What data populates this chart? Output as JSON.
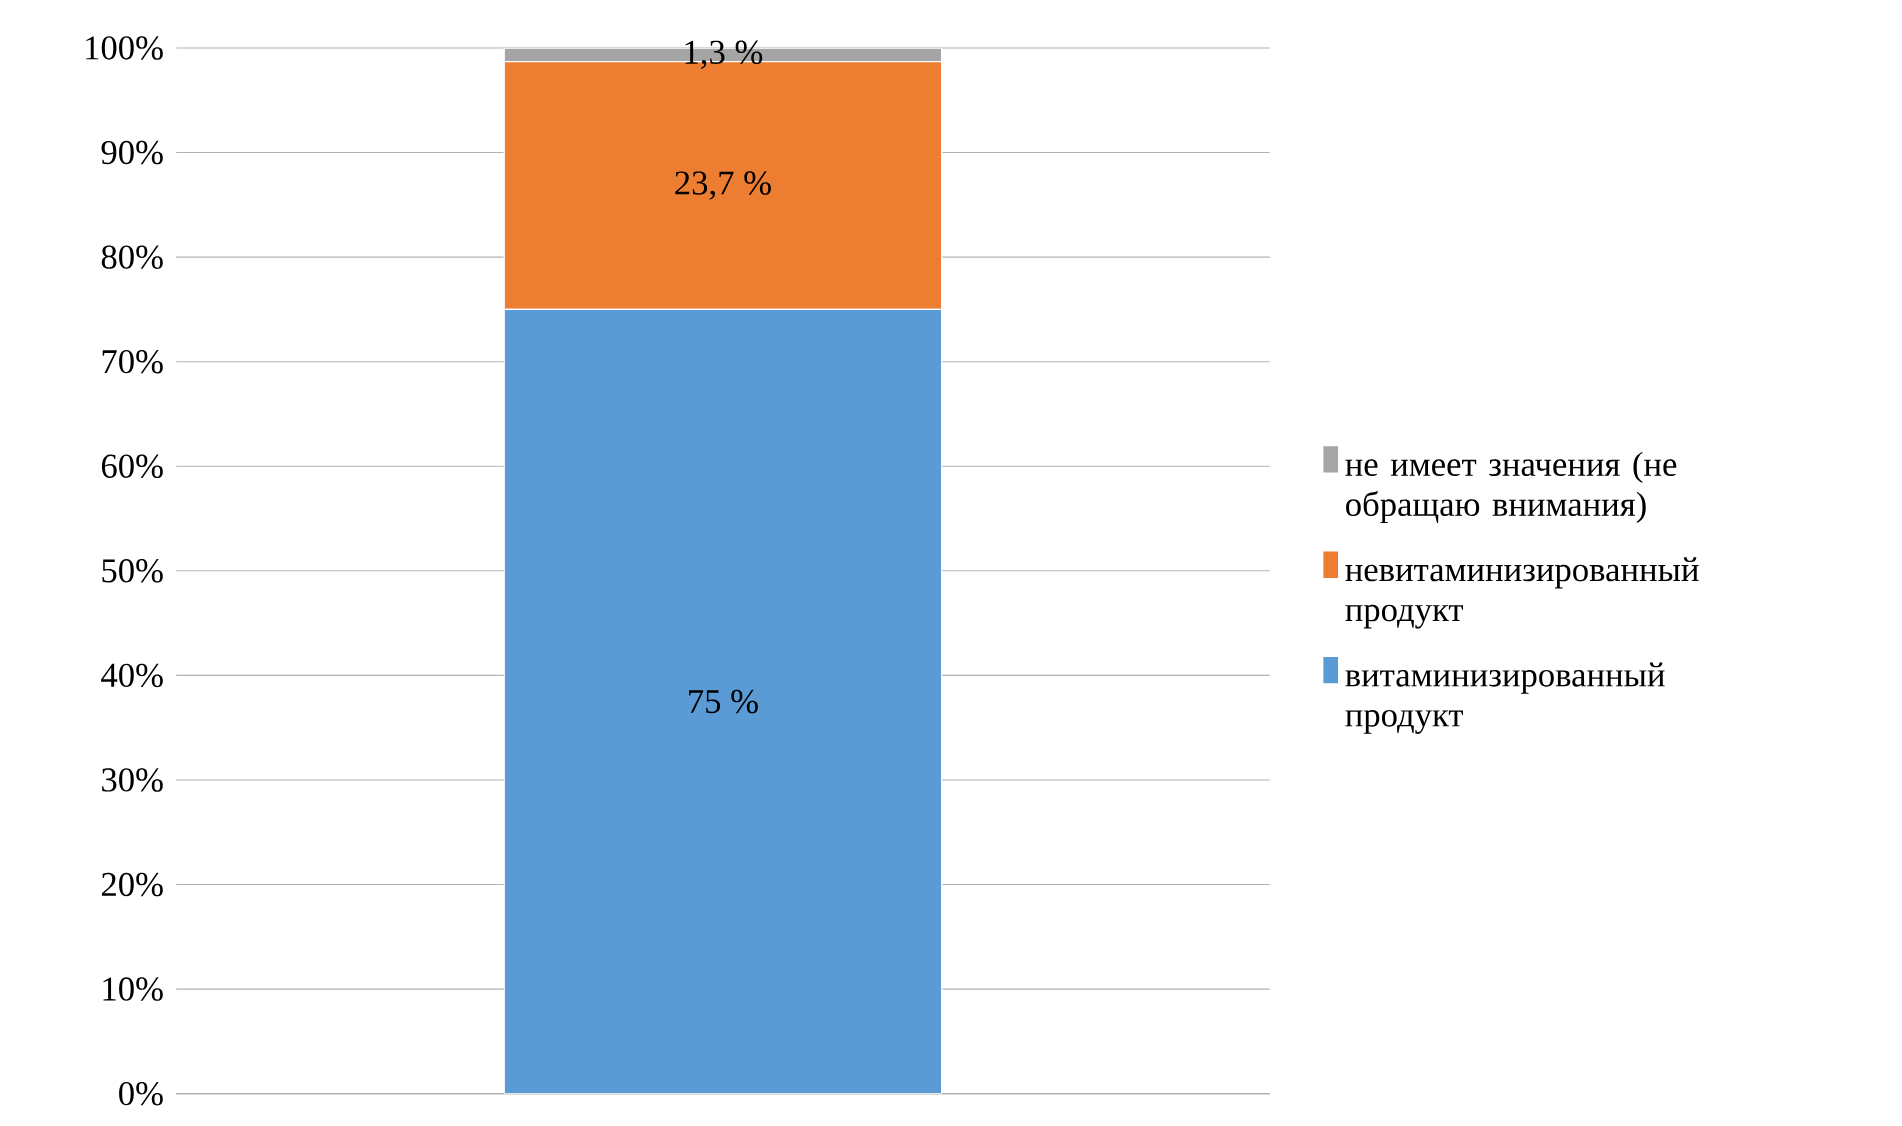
{
  "chart_data": {
    "type": "bar",
    "stacked": true,
    "categories": [
      null
    ],
    "series": [
      {
        "name": "витаминизированный продукт",
        "color": "#5b9bd5",
        "values": [
          75
        ],
        "value_labels": [
          "75 %"
        ]
      },
      {
        "name": "невитаминизированный продукт",
        "color": "#ed7d31",
        "values": [
          23.7
        ],
        "value_labels": [
          "23,7 %"
        ]
      },
      {
        "name": "не имеет значения (не обращаю внимания)",
        "color": "#a5a5a5",
        "values": [
          1.3
        ],
        "value_labels": [
          "1,3 %"
        ]
      }
    ],
    "ylim": [
      0,
      100
    ],
    "yticks": [
      {
        "value": 0,
        "label": "0%"
      },
      {
        "value": 10,
        "label": "10%"
      },
      {
        "value": 20,
        "label": "20%"
      },
      {
        "value": 30,
        "label": "30%"
      },
      {
        "value": 40,
        "label": "40%"
      },
      {
        "value": 50,
        "label": "50%"
      },
      {
        "value": 60,
        "label": "60%"
      },
      {
        "value": 70,
        "label": "70%"
      },
      {
        "value": 80,
        "label": "80%"
      },
      {
        "value": 90,
        "label": "90%"
      },
      {
        "value": 100,
        "label": "100%"
      }
    ],
    "grid": "y",
    "legend": "right"
  }
}
